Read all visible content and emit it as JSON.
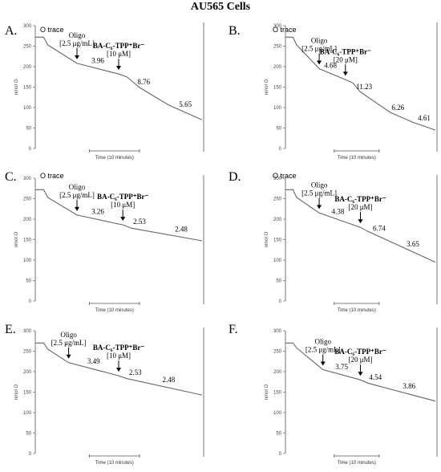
{
  "figure_title": "AU565 Cells",
  "panels_meta": [
    {
      "letter": "A.",
      "trace_label": "O trace"
    },
    {
      "letter": "B.",
      "trace_label": "O trace"
    },
    {
      "letter": "C.",
      "trace_label": "O trace"
    },
    {
      "letter": "D.",
      "trace_label": "O trace"
    },
    {
      "letter": "E.",
      "trace_label": ""
    },
    {
      "letter": "F.",
      "trace_label": ""
    }
  ],
  "chart_data": [
    {
      "type": "line",
      "title": "",
      "ylabel": "nmol O",
      "xlabel": "Time (10 minutes)",
      "ylim": [
        0,
        300
      ],
      "yticks": [
        0,
        50,
        100,
        150,
        200,
        250,
        300
      ],
      "x": [
        0,
        2,
        3,
        10,
        20,
        22,
        25,
        32,
        40
      ],
      "y": [
        272,
        272,
        253,
        208,
        182,
        175,
        149,
        106,
        70
      ],
      "annotations": [
        {
          "text": "Oligo",
          "line2": "[2.5 μg/mL]",
          "x": 10
        },
        {
          "text": "BA-C₆-TPP⁺Br⁻",
          "line2": "[10 μM]",
          "x": 20
        }
      ],
      "rates": [
        {
          "text": "3.96",
          "x": 15
        },
        {
          "text": "8.76",
          "x": 26
        },
        {
          "text": "5.65",
          "x": 36
        }
      ],
      "color": "#666666"
    },
    {
      "type": "line",
      "title": "",
      "ylabel": "nmol O",
      "xlabel": "Time (10 minutes)",
      "ylim": [
        0,
        300
      ],
      "yticks": [
        0,
        50,
        100,
        150,
        200,
        250,
        300
      ],
      "x": [
        0,
        2,
        3,
        9,
        16,
        18,
        20,
        28,
        34,
        40
      ],
      "y": [
        272,
        272,
        253,
        195,
        168,
        160,
        138,
        88,
        64,
        45
      ],
      "annotations": [
        {
          "text": "Oligo",
          "line2": "[2.5 μg/mL]",
          "x": 9
        },
        {
          "text": "BA-C₆-TPP⁺Br⁻",
          "line2": "[20 μM]",
          "x": 16
        }
      ],
      "rates": [
        {
          "text": "4.68",
          "x": 12
        },
        {
          "text": "11.23",
          "x": 21
        },
        {
          "text": "6.26",
          "x": 30
        },
        {
          "text": "4.61",
          "x": 37
        }
      ],
      "color": "#666666"
    },
    {
      "type": "line",
      "title": "",
      "ylabel": "nmol O",
      "xlabel": "Time (10 minutes)",
      "ylim": [
        0,
        300
      ],
      "yticks": [
        0,
        50,
        100,
        150,
        200,
        250,
        300
      ],
      "x": [
        0,
        2,
        3,
        10,
        21,
        23,
        40
      ],
      "y": [
        272,
        272,
        253,
        210,
        186,
        178,
        147
      ],
      "annotations": [
        {
          "text": "Oligo",
          "line2": "[2.5 μg/mL]",
          "x": 10
        },
        {
          "text": "BA-C₆-TPP⁺Br⁻",
          "line2": "[10 μM]",
          "x": 21
        }
      ],
      "rates": [
        {
          "text": "3.26",
          "x": 15
        },
        {
          "text": "2.53",
          "x": 25
        },
        {
          "text": "2.48",
          "x": 35
        }
      ],
      "color": "#666666"
    },
    {
      "type": "line",
      "title": "",
      "ylabel": "nmol O",
      "xlabel": "Time (10 minutes)",
      "ylim": [
        0,
        300
      ],
      "yticks": [
        0,
        50,
        100,
        150,
        200,
        250,
        300
      ],
      "x": [
        0,
        2,
        3,
        9,
        20,
        22,
        40
      ],
      "y": [
        272,
        272,
        253,
        215,
        180,
        170,
        95
      ],
      "annotations": [
        {
          "text": "Oligo",
          "line2": "[2.5 μg/mL]",
          "x": 9
        },
        {
          "text": "BA-C₆-TPP⁺Br⁻",
          "line2": "[20 μM]",
          "x": 20
        }
      ],
      "rates": [
        {
          "text": "4.38",
          "x": 14
        },
        {
          "text": "6.74",
          "x": 25
        },
        {
          "text": "3.65",
          "x": 34
        }
      ],
      "color": "#666666"
    },
    {
      "type": "line",
      "title": "",
      "ylabel": "nmol O",
      "xlabel": "Time (10 minutes)",
      "ylim": [
        0,
        300
      ],
      "yticks": [
        0,
        50,
        100,
        150,
        200,
        250,
        300
      ],
      "x": [
        0,
        2,
        3,
        8,
        20,
        22,
        40
      ],
      "y": [
        270,
        270,
        255,
        222,
        190,
        183,
        143
      ],
      "annotations": [
        {
          "text": "Oligo",
          "line2": "[2.5 μg/mL]",
          "x": 8
        },
        {
          "text": "BA-C₆-TPP⁺Br⁻",
          "line2": "[10 μM]",
          "x": 20
        }
      ],
      "rates": [
        {
          "text": "3.49",
          "x": 14
        },
        {
          "text": "2.53",
          "x": 24
        },
        {
          "text": "2.48",
          "x": 32
        }
      ],
      "color": "#666666"
    },
    {
      "type": "line",
      "title": "",
      "ylabel": "nmol O",
      "xlabel": "Time (10 minutes)",
      "ylim": [
        0,
        300
      ],
      "yticks": [
        0,
        50,
        100,
        150,
        200,
        250,
        300
      ],
      "x": [
        0,
        2,
        3,
        10,
        20,
        22,
        40
      ],
      "y": [
        270,
        270,
        258,
        205,
        180,
        172,
        128
      ],
      "annotations": [
        {
          "text": "Oligo",
          "line2": "[2.5 μg/mL]",
          "x": 10
        },
        {
          "text": "BA-C₆-TPP⁺Br⁻",
          "line2": "[20 μM]",
          "x": 20
        }
      ],
      "rates": [
        {
          "text": "3.75",
          "x": 15
        },
        {
          "text": "4.54",
          "x": 24
        },
        {
          "text": "3.86",
          "x": 33
        }
      ],
      "color": "#666666"
    }
  ]
}
